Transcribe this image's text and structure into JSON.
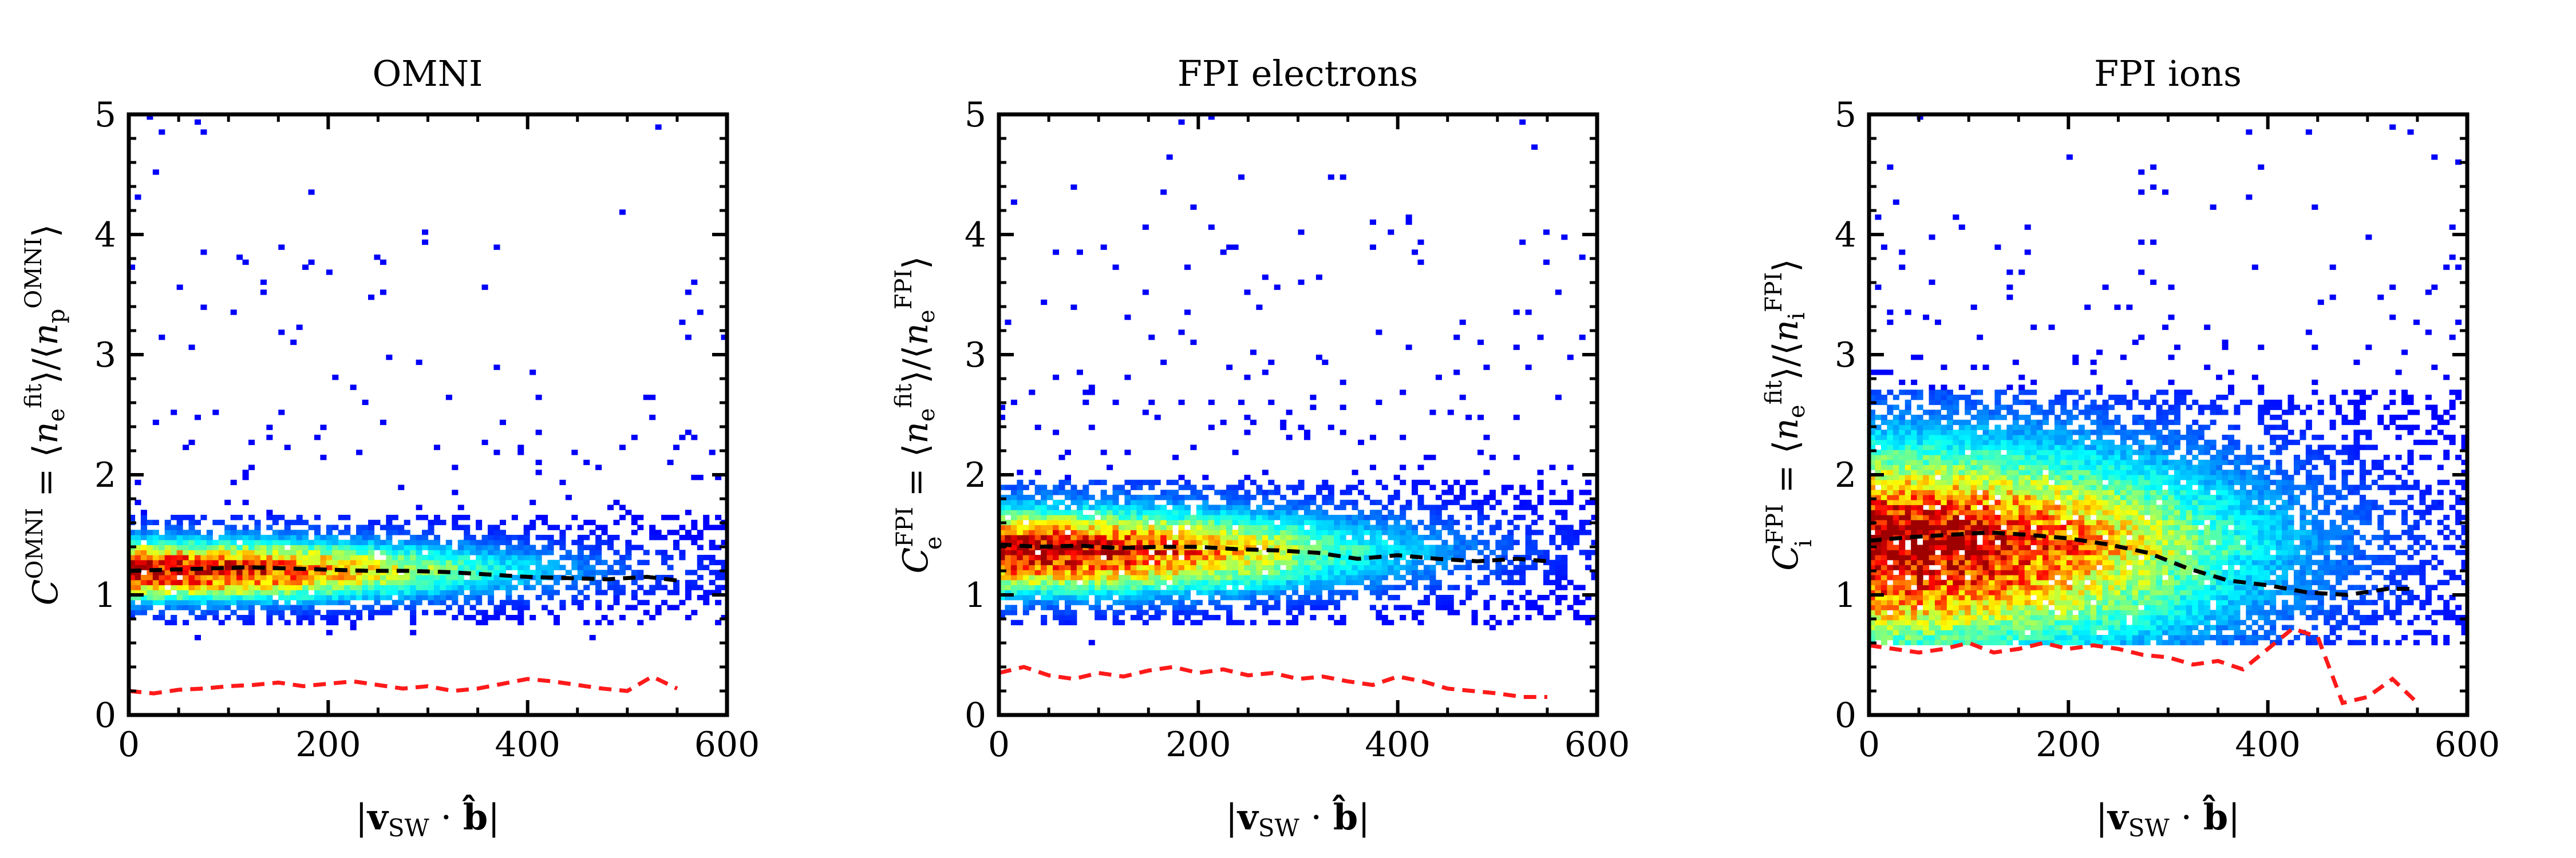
{
  "chart_data": [
    {
      "type": "heatmap",
      "title": "OMNI",
      "xlabel": "|v_SW · b̂|",
      "ylabel": "C^OMNI = ⟨n_e^fit⟩/⟨n_p^OMNI⟩",
      "xlim": [
        0,
        600
      ],
      "ylim": [
        0,
        5
      ],
      "xticks": [
        0,
        200,
        400,
        600
      ],
      "yticks": [
        0,
        1,
        2,
        3,
        4,
        5
      ],
      "density": {
        "y_center": 1.2,
        "y_spread": 0.16,
        "core_halfwidth": 0.35,
        "x_extent": 560,
        "tail_level": 0.05
      },
      "series": [
        {
          "style": "black-dashed",
          "x": [
            0,
            40,
            80,
            120,
            160,
            200,
            240,
            280,
            320,
            360,
            400,
            440,
            480,
            520,
            550
          ],
          "y": [
            1.2,
            1.21,
            1.22,
            1.23,
            1.22,
            1.21,
            1.2,
            1.2,
            1.19,
            1.17,
            1.15,
            1.14,
            1.13,
            1.15,
            1.12
          ]
        },
        {
          "style": "red-dashed",
          "x": [
            0,
            25,
            50,
            75,
            100,
            125,
            150,
            175,
            200,
            225,
            250,
            275,
            300,
            325,
            350,
            375,
            400,
            425,
            450,
            475,
            500,
            525,
            550
          ],
          "y": [
            0.2,
            0.18,
            0.21,
            0.22,
            0.24,
            0.25,
            0.27,
            0.24,
            0.26,
            0.28,
            0.25,
            0.22,
            0.24,
            0.2,
            0.22,
            0.26,
            0.3,
            0.28,
            0.25,
            0.22,
            0.2,
            0.32,
            0.22
          ]
        }
      ]
    },
    {
      "type": "heatmap",
      "title": "FPI electrons",
      "xlabel": "|v_SW · b̂|",
      "ylabel": "C_e^FPI = ⟨n_e^fit⟩/⟨n_e^FPI⟩",
      "xlim": [
        0,
        600
      ],
      "ylim": [
        0,
        5
      ],
      "xticks": [
        0,
        200,
        400,
        600
      ],
      "yticks": [
        0,
        1,
        2,
        3,
        4,
        5
      ],
      "density": {
        "y_center": 1.35,
        "y_spread": 0.22,
        "core_halfwidth": 0.6,
        "x_extent": 560,
        "tail_level": 0.1
      },
      "series": [
        {
          "style": "black-dashed",
          "x": [
            0,
            40,
            80,
            120,
            160,
            200,
            240,
            280,
            320,
            360,
            400,
            440,
            480,
            520,
            550
          ],
          "y": [
            1.42,
            1.4,
            1.41,
            1.39,
            1.4,
            1.4,
            1.38,
            1.37,
            1.35,
            1.3,
            1.33,
            1.3,
            1.28,
            1.3,
            1.28
          ]
        },
        {
          "style": "red-dashed",
          "x": [
            0,
            25,
            50,
            75,
            100,
            125,
            150,
            175,
            200,
            225,
            250,
            275,
            300,
            325,
            350,
            375,
            400,
            425,
            450,
            475,
            500,
            525,
            550
          ],
          "y": [
            0.35,
            0.4,
            0.33,
            0.3,
            0.35,
            0.32,
            0.37,
            0.4,
            0.35,
            0.38,
            0.33,
            0.35,
            0.3,
            0.32,
            0.28,
            0.25,
            0.32,
            0.28,
            0.22,
            0.2,
            0.18,
            0.15,
            0.15
          ]
        }
      ]
    },
    {
      "type": "heatmap",
      "title": "FPI ions",
      "xlabel": "|v_SW · b̂|",
      "ylabel": "C_i^FPI = ⟨n_e^fit⟩/⟨n_i^FPI⟩",
      "xlim": [
        0,
        600
      ],
      "ylim": [
        0,
        5
      ],
      "xticks": [
        0,
        200,
        400,
        600
      ],
      "yticks": [
        0,
        1,
        2,
        3,
        4,
        5
      ],
      "density": {
        "y_center": 1.35,
        "y_spread": 0.55,
        "core_halfwidth": 1.2,
        "x_extent": 560,
        "tail_level": 0.15
      },
      "series": [
        {
          "style": "black-dashed",
          "x": [
            0,
            40,
            80,
            120,
            160,
            200,
            240,
            280,
            320,
            360,
            400,
            440,
            480,
            520,
            550
          ],
          "y": [
            1.45,
            1.48,
            1.5,
            1.52,
            1.5,
            1.47,
            1.42,
            1.35,
            1.22,
            1.12,
            1.08,
            1.02,
            1.0,
            1.05,
            1.05
          ]
        },
        {
          "style": "red-dashed",
          "x": [
            0,
            25,
            50,
            75,
            100,
            125,
            150,
            175,
            200,
            225,
            250,
            275,
            300,
            325,
            350,
            375,
            400,
            425,
            450,
            475,
            500,
            525,
            550
          ],
          "y": [
            0.58,
            0.55,
            0.52,
            0.55,
            0.6,
            0.52,
            0.55,
            0.6,
            0.55,
            0.58,
            0.55,
            0.5,
            0.48,
            0.42,
            0.45,
            0.38,
            0.55,
            0.72,
            0.65,
            0.1,
            0.15,
            0.3,
            0.1
          ]
        }
      ]
    }
  ]
}
